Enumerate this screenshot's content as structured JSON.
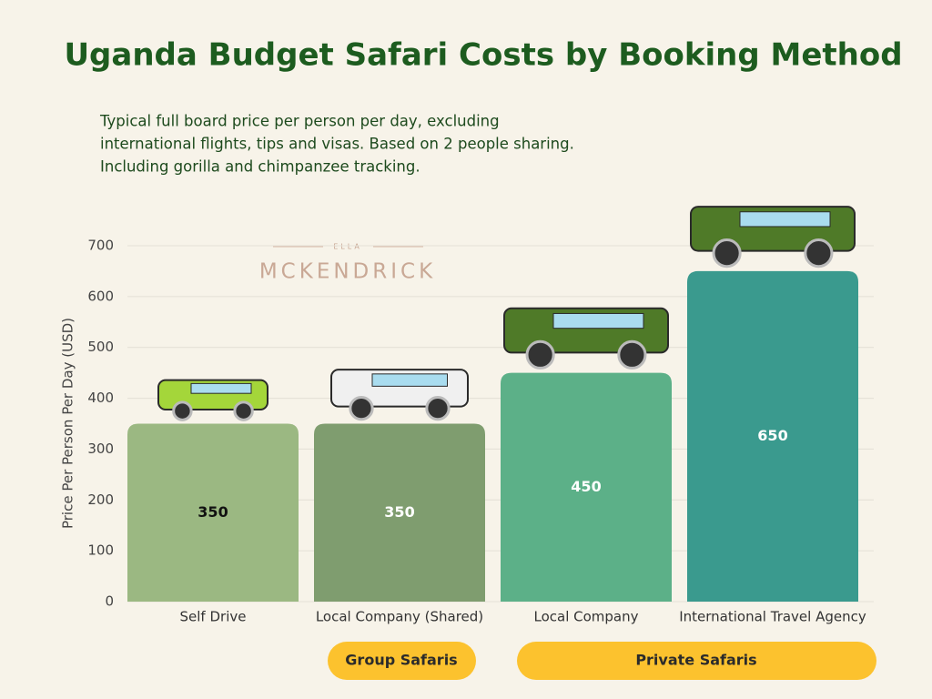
{
  "chart_data": {
    "type": "bar",
    "title": "Uganda Budget Safari Costs by Booking Method",
    "subtitle": [
      "Typical full board price per person per day, excluding",
      "international flights, tips and visas. Based on 2 people sharing.",
      "Including gorilla and chimpanzee tracking."
    ],
    "watermark": [
      "ELLA",
      "MCKENDRICK"
    ],
    "y_label": "Price Per Person Per Day (USD)",
    "categories": [
      "Self Drive",
      "Local Company (Shared)",
      "Local Company",
      "International Travel Agency"
    ],
    "values": [
      350,
      350,
      450,
      650
    ],
    "colors": [
      "#9bb882",
      "#7f9d6f",
      "#5cb088",
      "#3a9a8e"
    ],
    "label_colors": [
      "#111111",
      "#ffffff",
      "#ffffff",
      "#ffffff"
    ],
    "groups": [
      "Group Safaris",
      "Private Safaris"
    ],
    "ylim": [
      0,
      700
    ],
    "yticks": [
      0,
      100,
      200,
      300,
      400,
      500,
      600,
      700
    ],
    "grid": true
  }
}
